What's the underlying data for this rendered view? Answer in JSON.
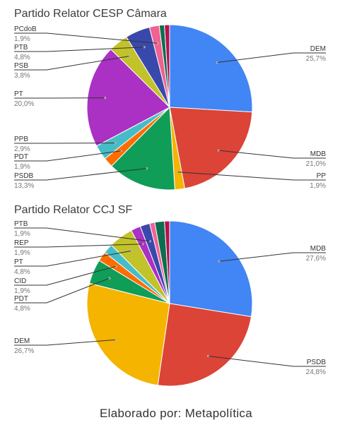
{
  "chart_data": [
    {
      "type": "pie",
      "title": "Partido Relator CESP Câmara",
      "slices": [
        {
          "label": "DEM",
          "value": 25.7,
          "display": "25,7%",
          "color": "#4285f4"
        },
        {
          "label": "MDB",
          "value": 21.0,
          "display": "21,0%",
          "color": "#db4437"
        },
        {
          "label": "PP",
          "value": 1.9,
          "display": "1,9%",
          "color": "#f4b400"
        },
        {
          "label": "PSDB",
          "value": 13.3,
          "display": "13,3%",
          "color": "#0f9d58"
        },
        {
          "label": "PDT",
          "value": 1.9,
          "display": "1,9%",
          "color": "#ff6d00"
        },
        {
          "label": "PPB",
          "value": 2.9,
          "display": "2,9%",
          "color": "#46bdc6"
        },
        {
          "label": "PT",
          "value": 20.0,
          "display": "20,0%",
          "color": "#ab30c4"
        },
        {
          "label": "PSB",
          "value": 3.8,
          "display": "3,8%",
          "color": "#c2c22b"
        },
        {
          "label": "PTB",
          "value": 4.8,
          "display": "4,8%",
          "color": "#3949ab"
        },
        {
          "label": "PCdoB",
          "value": 1.9,
          "display": "1,9%",
          "color": "#f06292"
        },
        {
          "value": 1.0,
          "color": "#0b6e4f"
        },
        {
          "value": 1.0,
          "color": "#b5124b"
        }
      ]
    },
    {
      "type": "pie",
      "title": "Partido Relator CCJ SF",
      "slices": [
        {
          "label": "MDB",
          "value": 27.6,
          "display": "27,6%",
          "color": "#4285f4"
        },
        {
          "label": "PSDB",
          "value": 24.8,
          "display": "24,8%",
          "color": "#db4437"
        },
        {
          "label": "DEM",
          "value": 26.7,
          "display": "26,7%",
          "color": "#f4b400"
        },
        {
          "label": "PDT",
          "value": 4.8,
          "display": "4,8%",
          "color": "#0f9d58"
        },
        {
          "label": "CID",
          "value": 1.9,
          "display": "1,9%",
          "color": "#ff6d00"
        },
        {
          "value": 1.9,
          "color": "#46bdc6"
        },
        {
          "label": "PT",
          "value": 4.8,
          "display": "4,8%",
          "color": "#c2c22b"
        },
        {
          "label": "REP",
          "value": 1.9,
          "display": "1,9%",
          "color": "#ab30c4"
        },
        {
          "label": "PTB",
          "value": 1.9,
          "display": "1,9%",
          "color": "#3949ab"
        },
        {
          "value": 1.0,
          "color": "#f06292"
        },
        {
          "value": 1.9,
          "color": "#0b6e4f"
        },
        {
          "value": 1.0,
          "color": "#b5124b"
        }
      ]
    }
  ],
  "credit": "Elaborado por: Metapolítica"
}
